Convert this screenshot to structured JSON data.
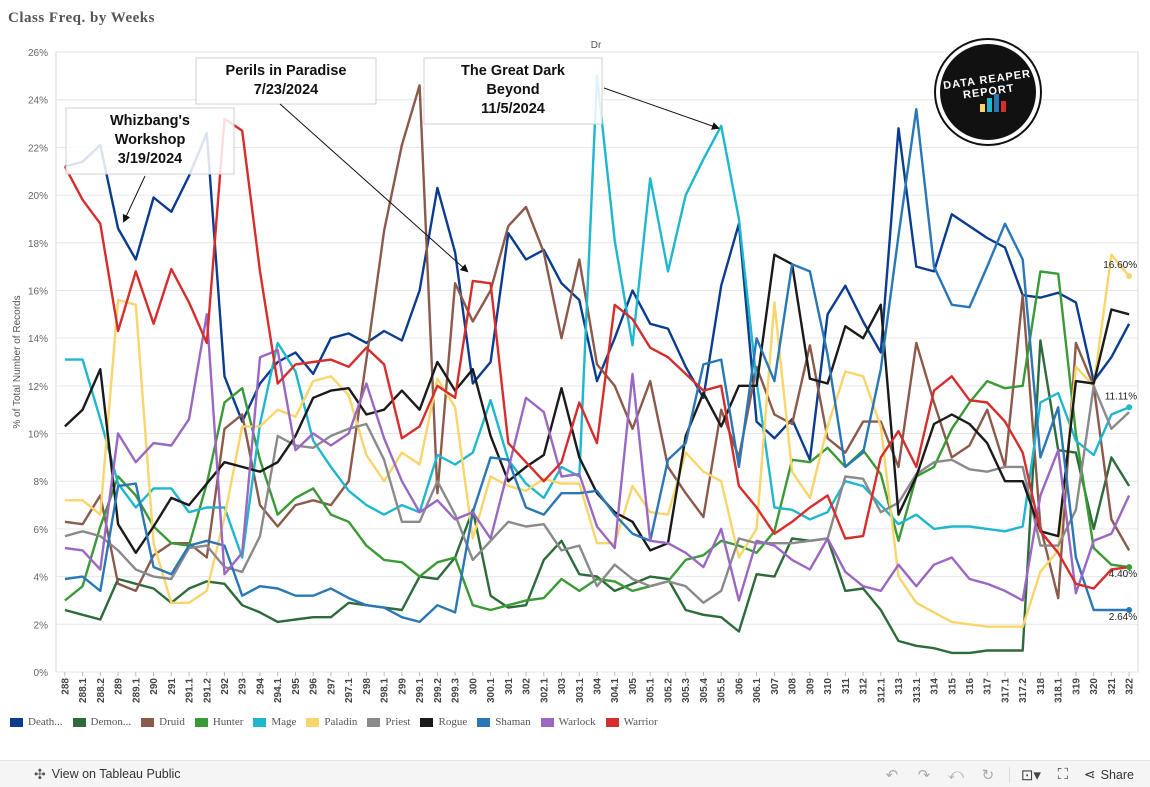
{
  "title": "Class Freq. by Weeks",
  "top_header": "Dr",
  "logo_text": "DATA REAPER REPORT",
  "annotations": [
    {
      "key": "whizbang",
      "lines": [
        "Whizbang's",
        "Workshop",
        "3/19/2024"
      ]
    },
    {
      "key": "perils",
      "lines": [
        "Perils in Paradise",
        "7/23/2024"
      ]
    },
    {
      "key": "darkbeyond",
      "lines": [
        "The Great Dark",
        "Beyond",
        "11/5/2024"
      ]
    }
  ],
  "end_labels": [
    "16.60%",
    "11.11%",
    "4.40%",
    "2.64%"
  ],
  "footer": {
    "view_link": "View on Tableau Public",
    "share": "Share"
  },
  "chart_data": {
    "type": "line",
    "ylabel": "% of Total Number of Records",
    "ylim": [
      0,
      26
    ],
    "yticks": [
      "0%",
      "2%",
      "4%",
      "6%",
      "8%",
      "10%",
      "12%",
      "14%",
      "16%",
      "18%",
      "20%",
      "22%",
      "24%",
      "26%"
    ],
    "grid": true,
    "legend_position": "bottom",
    "x": [
      "288",
      "288.1",
      "288.2",
      "289",
      "289.1",
      "290",
      "291",
      "291.1",
      "291.2",
      "292",
      "293",
      "294",
      "294.1",
      "295",
      "296",
      "297",
      "297.1",
      "298",
      "298.1",
      "299",
      "299.1",
      "299.2",
      "299.3",
      "300",
      "300.1",
      "301",
      "302",
      "302.1",
      "303",
      "303.1",
      "304",
      "304.1",
      "305",
      "305.1",
      "305.2",
      "305.3",
      "305.4",
      "305.5",
      "306",
      "306.1",
      "307",
      "308",
      "309",
      "310",
      "311",
      "312",
      "312.1",
      "313",
      "313.1",
      "314",
      "315",
      "316",
      "317",
      "317.1",
      "317.2",
      "318",
      "318.1",
      "319",
      "320",
      "321",
      "322"
    ],
    "series": [
      {
        "name": "Death...",
        "color": "#0b3c8f",
        "values": [
          21.2,
          21.4,
          22.1,
          18.6,
          17.3,
          19.9,
          19.3,
          20.8,
          22.6,
          12.4,
          10.5,
          12.1,
          13.0,
          13.4,
          12.5,
          14.0,
          14.2,
          13.8,
          14.3,
          13.9,
          16.0,
          20.3,
          17.6,
          12.1,
          13.0,
          18.4,
          17.3,
          17.7,
          16.3,
          15.6,
          12.2,
          14.0,
          16.0,
          14.6,
          14.4,
          12.8,
          11.5,
          16.2,
          18.8,
          10.5,
          9.8,
          10.6,
          8.9,
          15.0,
          16.2,
          14.7,
          13.4,
          22.8,
          17.0,
          16.8,
          19.2,
          18.7,
          18.2,
          17.8,
          15.8,
          15.7,
          15.9,
          15.5,
          12.2,
          13.2,
          14.6
        ]
      },
      {
        "name": "Demon...",
        "color": "#2d6b3a",
        "values": [
          2.6,
          2.4,
          2.2,
          3.9,
          3.7,
          3.5,
          2.9,
          3.5,
          3.8,
          3.7,
          2.8,
          2.5,
          2.1,
          2.2,
          2.3,
          2.3,
          2.9,
          2.8,
          2.7,
          2.6,
          4.0,
          3.9,
          4.8,
          6.8,
          3.2,
          2.7,
          2.8,
          4.7,
          5.5,
          4.1,
          4.0,
          3.4,
          3.7,
          4.0,
          3.9,
          2.6,
          2.4,
          2.3,
          1.7,
          4.1,
          4.0,
          5.6,
          5.5,
          5.6,
          3.4,
          3.5,
          2.6,
          1.3,
          1.1,
          1.0,
          0.8,
          0.8,
          0.9,
          0.9,
          0.9,
          13.9,
          9.3,
          9.2,
          6.0,
          9.0,
          7.8
        ]
      },
      {
        "name": "Druid",
        "color": "#8b5a4a",
        "values": [
          6.3,
          6.2,
          7.4,
          3.7,
          3.4,
          4.9,
          5.4,
          5.4,
          4.8,
          10.2,
          10.8,
          7.0,
          6.1,
          7.0,
          7.2,
          7.0,
          8.0,
          13.1,
          18.5,
          22.1,
          24.6,
          7.5,
          16.3,
          14.7,
          16.0,
          18.7,
          19.5,
          17.6,
          14.0,
          17.3,
          12.9,
          12.0,
          10.2,
          12.2,
          8.6,
          7.5,
          6.5,
          11.0,
          9.0,
          12.8,
          10.8,
          10.4,
          13.7,
          9.8,
          9.2,
          10.5,
          10.5,
          8.6,
          13.8,
          11.3,
          9.0,
          9.5,
          11.0,
          8.6,
          15.8,
          6.1,
          3.1,
          13.8,
          12.0,
          6.4,
          5.1
        ]
      },
      {
        "name": "Hunter",
        "color": "#3a9a35",
        "values": [
          3.0,
          3.6,
          6.1,
          8.2,
          7.4,
          6.1,
          5.4,
          5.3,
          7.9,
          11.3,
          11.9,
          8.9,
          6.6,
          7.3,
          7.7,
          6.6,
          6.3,
          5.3,
          4.7,
          4.6,
          4.0,
          4.6,
          4.8,
          2.8,
          2.6,
          2.8,
          3.0,
          3.1,
          3.9,
          3.4,
          3.9,
          3.8,
          3.4,
          3.6,
          3.8,
          4.7,
          4.9,
          5.5,
          5.3,
          5.0,
          5.9,
          8.9,
          8.8,
          9.4,
          8.6,
          9.3,
          8.3,
          5.5,
          8.2,
          8.6,
          10.2,
          11.3,
          12.2,
          11.9,
          12.0,
          16.8,
          16.7,
          10.0,
          5.2,
          4.5,
          4.4
        ]
      },
      {
        "name": "Mage",
        "color": "#1eb7cf",
        "values": [
          13.1,
          13.1,
          10.6,
          7.9,
          6.9,
          7.7,
          7.7,
          6.7,
          6.9,
          6.9,
          4.8,
          10.4,
          13.8,
          12.6,
          9.7,
          8.6,
          7.6,
          7.0,
          6.6,
          7.0,
          6.7,
          9.1,
          8.7,
          9.2,
          11.4,
          8.9,
          7.9,
          7.3,
          8.6,
          8.2,
          25.0,
          18.1,
          13.7,
          20.7,
          16.8,
          20.0,
          21.5,
          22.9,
          19.0,
          12.2,
          6.9,
          6.8,
          6.4,
          6.7,
          8.0,
          7.8,
          7.0,
          6.2,
          6.6,
          6.0,
          6.1,
          6.1,
          6.0,
          5.9,
          6.1,
          11.3,
          11.7,
          9.7,
          9.1,
          10.8,
          11.1
        ]
      },
      {
        "name": "Paladin",
        "color": "#f9d56b",
        "values": [
          7.2,
          7.2,
          6.6,
          15.6,
          15.4,
          5.4,
          2.9,
          2.9,
          3.4,
          6.5,
          10.3,
          10.3,
          11.0,
          10.7,
          12.2,
          12.4,
          11.6,
          9.1,
          8.0,
          9.2,
          8.7,
          12.3,
          11.1,
          5.6,
          8.2,
          7.8,
          7.6,
          8.1,
          7.9,
          7.9,
          5.4,
          5.4,
          7.8,
          6.7,
          6.6,
          9.2,
          8.4,
          8.0,
          4.8,
          6.0,
          15.5,
          8.4,
          7.3,
          10.3,
          12.6,
          12.4,
          10.3,
          4.0,
          2.9,
          2.5,
          2.1,
          2.0,
          1.9,
          1.9,
          1.9,
          4.2,
          5.1,
          12.8,
          12.0,
          17.5,
          16.6
        ]
      },
      {
        "name": "Priest",
        "color": "#8a8a8a",
        "values": [
          5.7,
          5.9,
          5.7,
          5.1,
          4.3,
          4.0,
          3.9,
          5.2,
          5.3,
          4.4,
          4.2,
          5.7,
          9.9,
          9.5,
          9.4,
          9.9,
          10.2,
          10.4,
          8.9,
          6.3,
          6.3,
          8.0,
          6.6,
          4.7,
          5.5,
          6.3,
          6.1,
          6.2,
          5.1,
          5.3,
          3.6,
          4.5,
          3.9,
          3.6,
          3.8,
          3.6,
          2.9,
          3.4,
          5.6,
          5.4,
          5.4,
          5.4,
          5.5,
          5.6,
          8.2,
          8.1,
          6.7,
          7.1,
          8.3,
          8.8,
          8.9,
          8.5,
          8.4,
          8.6,
          8.6,
          5.3,
          5.3,
          6.8,
          12.0,
          10.2,
          10.9
        ]
      },
      {
        "name": "Rogue",
        "color": "#1a1a1a",
        "values": [
          10.3,
          11.0,
          12.7,
          6.2,
          5.0,
          6.1,
          7.3,
          7.0,
          7.9,
          8.8,
          8.6,
          8.4,
          8.8,
          9.9,
          11.5,
          11.8,
          11.9,
          10.8,
          11.0,
          11.8,
          11.0,
          13.0,
          11.8,
          12.7,
          9.9,
          8.0,
          8.6,
          9.1,
          11.9,
          9.0,
          7.5,
          6.7,
          6.3,
          5.1,
          5.4,
          9.9,
          11.7,
          10.3,
          12.0,
          12.0,
          17.5,
          17.1,
          12.3,
          12.1,
          14.5,
          14.0,
          15.4,
          6.6,
          8.2,
          10.4,
          10.8,
          10.4,
          9.6,
          8.0,
          8.0,
          5.9,
          5.7,
          12.2,
          12.1,
          15.2,
          15.0
        ]
      },
      {
        "name": "Shaman",
        "color": "#2a77b6",
        "values": [
          3.9,
          4.0,
          3.4,
          7.8,
          7.9,
          4.4,
          4.1,
          5.3,
          5.5,
          5.3,
          3.2,
          3.6,
          3.5,
          3.2,
          3.2,
          3.5,
          3.1,
          2.8,
          2.7,
          2.3,
          2.1,
          2.8,
          2.5,
          6.7,
          9.0,
          8.9,
          6.9,
          6.6,
          7.5,
          7.5,
          7.6,
          6.6,
          5.8,
          5.5,
          8.9,
          9.6,
          12.9,
          13.1,
          8.6,
          14.0,
          12.2,
          17.1,
          16.8,
          13.3,
          8.6,
          9.2,
          12.7,
          18.3,
          23.6,
          17.0,
          15.4,
          15.3,
          17.0,
          18.8,
          17.3,
          9.0,
          11.1,
          4.8,
          2.6,
          2.6,
          2.6
        ]
      },
      {
        "name": "Warlock",
        "color": "#9a68c2",
        "values": [
          5.2,
          5.1,
          4.3,
          10.0,
          8.8,
          9.6,
          9.5,
          10.6,
          15.0,
          4.1,
          5.0,
          13.2,
          13.5,
          9.3,
          10.0,
          9.5,
          10.0,
          12.1,
          9.8,
          8.0,
          6.7,
          7.2,
          6.4,
          6.7,
          5.6,
          8.5,
          11.5,
          10.9,
          8.2,
          8.3,
          6.1,
          5.2,
          12.5,
          5.5,
          5.4,
          5.0,
          4.4,
          6.0,
          3.0,
          5.5,
          5.3,
          4.7,
          4.3,
          5.6,
          4.2,
          3.6,
          3.4,
          4.5,
          3.6,
          4.5,
          4.8,
          3.9,
          3.7,
          3.4,
          3.0,
          7.4,
          9.3,
          3.3,
          5.5,
          5.8,
          7.4
        ]
      },
      {
        "name": "Warrior",
        "color": "#d62d2d",
        "values": [
          21.2,
          19.8,
          18.8,
          14.3,
          16.8,
          14.6,
          16.9,
          15.5,
          13.8,
          23.2,
          22.7,
          16.8,
          12.1,
          12.9,
          13.0,
          13.1,
          12.8,
          13.6,
          12.9,
          9.8,
          10.3,
          12.0,
          11.5,
          16.4,
          16.3,
          9.6,
          8.8,
          8.0,
          8.8,
          11.3,
          9.6,
          15.4,
          14.8,
          13.6,
          13.2,
          12.5,
          11.8,
          12.0,
          7.8,
          6.9,
          5.8,
          6.3,
          6.9,
          7.4,
          5.6,
          5.7,
          9.0,
          10.1,
          8.6,
          11.8,
          12.4,
          11.4,
          11.3,
          10.5,
          9.2,
          5.9,
          5.0,
          3.7,
          3.5,
          4.3,
          4.4
        ]
      }
    ]
  }
}
